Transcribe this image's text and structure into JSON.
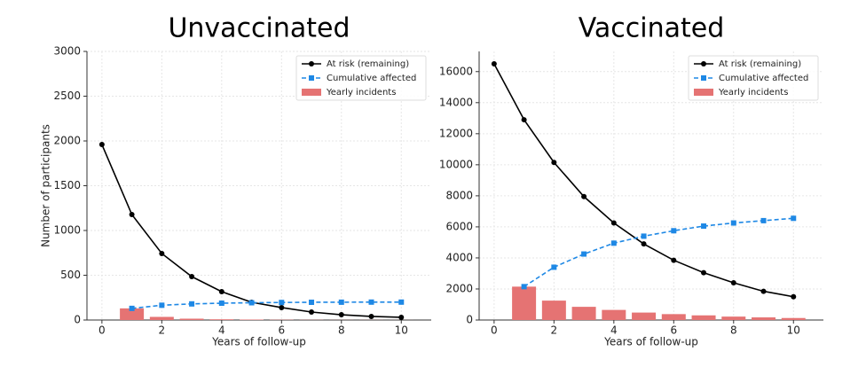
{
  "chart_data": [
    {
      "type": "combo",
      "title": "Unvaccinated",
      "xlabel": "Years of follow-up",
      "ylabel": "Number of participants",
      "x": [
        0,
        1,
        2,
        3,
        4,
        5,
        6,
        7,
        8,
        9,
        10
      ],
      "xlim": [
        -0.5,
        11
      ],
      "xticks": [
        0,
        2,
        4,
        6,
        8,
        10
      ],
      "ylim": [
        0,
        3000
      ],
      "yticks": [
        0,
        500,
        1000,
        1500,
        2000,
        2500,
        3000
      ],
      "grid": true,
      "legend": "upper right",
      "series": [
        {
          "name": "At risk (remaining)",
          "type": "line",
          "marker": "circle",
          "linestyle": "solid",
          "color": "#000000",
          "values": [
            1960,
            1178,
            743,
            485,
            317,
            198,
            139,
            89,
            59,
            40,
            30
          ]
        },
        {
          "name": "Cumulative affected",
          "type": "line",
          "marker": "square",
          "linestyle": "dashed",
          "color": "#1e88e5",
          "values": [
            null,
            130,
            165,
            180,
            188,
            193,
            196,
            198,
            199,
            200,
            200
          ]
        },
        {
          "name": "Yearly incidents",
          "type": "bar",
          "color": "#e57373",
          "values": [
            null,
            130,
            35,
            15,
            8,
            5,
            3,
            2,
            1,
            1,
            0.5
          ]
        }
      ]
    },
    {
      "type": "combo",
      "title": "Vaccinated",
      "xlabel": "Years of follow-up",
      "x": [
        0,
        1,
        2,
        3,
        4,
        5,
        6,
        7,
        8,
        9,
        10
      ],
      "xlim": [
        -0.5,
        11
      ],
      "xticks": [
        0,
        2,
        4,
        6,
        8,
        10
      ],
      "ylim": [
        0,
        17300
      ],
      "yticks": [
        0,
        2000,
        4000,
        6000,
        8000,
        10000,
        12000,
        14000,
        16000
      ],
      "grid": true,
      "legend": "upper right",
      "series": [
        {
          "name": "At risk (remaining)",
          "type": "line",
          "marker": "circle",
          "linestyle": "solid",
          "color": "#000000",
          "values": [
            16500,
            12900,
            10150,
            7950,
            6250,
            4900,
            3850,
            3050,
            2400,
            1850,
            1500
          ]
        },
        {
          "name": "Cumulative affected",
          "type": "line",
          "marker": "square",
          "linestyle": "dashed",
          "color": "#1e88e5",
          "values": [
            null,
            2150,
            3400,
            4250,
            4950,
            5400,
            5750,
            6050,
            6250,
            6400,
            6550
          ]
        },
        {
          "name": "Yearly incidents",
          "type": "bar",
          "color": "#e57373",
          "values": [
            null,
            2150,
            1250,
            850,
            650,
            480,
            380,
            300,
            220,
            170,
            130
          ]
        }
      ]
    }
  ]
}
